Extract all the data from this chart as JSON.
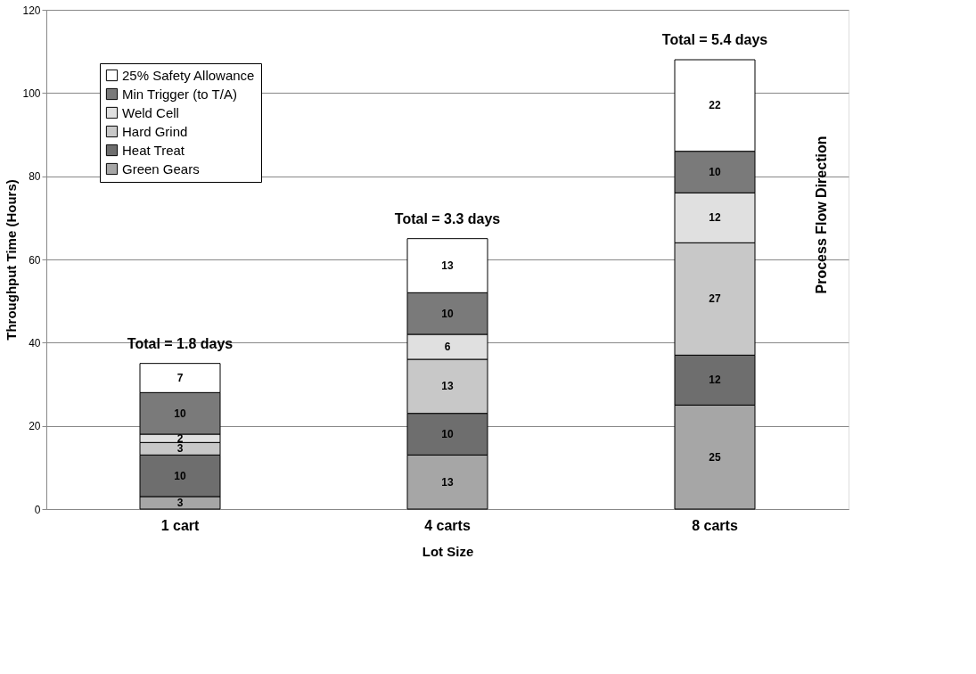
{
  "chart_data": {
    "type": "bar",
    "stacked": true,
    "xlabel": "Lot Size",
    "ylabel": "Throughput Time (Hours)",
    "categories": [
      "1 cart",
      "4 carts",
      "8 carts"
    ],
    "series": [
      {
        "name": "Green Gears",
        "color": "#a6a6a6",
        "values": [
          3,
          13,
          25
        ]
      },
      {
        "name": "Heat Treat",
        "color": "#6e6e6e",
        "values": [
          10,
          10,
          12
        ]
      },
      {
        "name": "Hard Grind",
        "color": "#c8c8c8",
        "values": [
          3,
          13,
          27
        ]
      },
      {
        "name": "Weld Cell",
        "color": "#e0e0e0",
        "values": [
          2,
          6,
          12
        ]
      },
      {
        "name": "Min Trigger (to T/A)",
        "color": "#7a7a7a",
        "values": [
          10,
          10,
          10
        ]
      },
      {
        "name": "25% Safety Allowance",
        "color": "#ffffff",
        "values": [
          7,
          13,
          22
        ]
      }
    ],
    "ylim": [
      0,
      120
    ],
    "yticks": [
      0,
      20,
      40,
      60,
      80,
      100,
      120
    ],
    "grid": "y",
    "legend": "top left",
    "data_labels": true,
    "annotations": [
      {
        "text": "Total = 1.8 days",
        "x": "1 cart",
        "y": 35
      },
      {
        "text": "Total = 3.3 days",
        "x": "4 carts",
        "y": 65
      },
      {
        "text": "Total = 5.4 days",
        "x": "8 carts",
        "y": 108
      },
      "Process Flow Direction"
    ]
  }
}
